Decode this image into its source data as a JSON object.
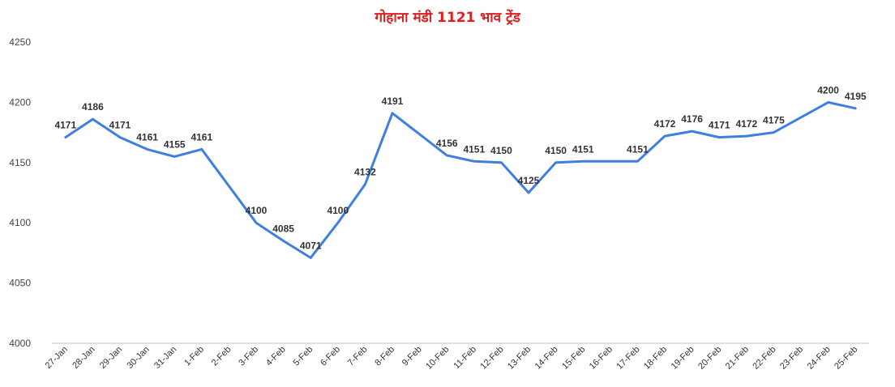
{
  "chart_data": {
    "type": "line",
    "title": "गोहाना मंडी 1121 भाव ट्रेंड",
    "xlabel": "",
    "ylabel": "",
    "ylim": [
      4000,
      4250
    ],
    "yticks": [
      4000,
      4050,
      4100,
      4150,
      4200,
      4250
    ],
    "grid": false,
    "legend": "none",
    "line_color": "#3e7fe0",
    "title_color": "#e11d1d",
    "categories": [
      "27-Jan",
      "28-Jan",
      "29-Jan",
      "30-Jan",
      "31-Jan",
      "1-Feb",
      "2-Feb",
      "3-Feb",
      "4-Feb",
      "5-Feb",
      "6-Feb",
      "7-Feb",
      "8-Feb",
      "9-Feb",
      "10-Feb",
      "11-Feb",
      "12-Feb",
      "13-Feb",
      "14-Feb",
      "15-Feb",
      "16-Feb",
      "17-Feb",
      "18-Feb",
      "19-Feb",
      "20-Feb",
      "21-Feb",
      "22-Feb",
      "23-Feb",
      "24-Feb",
      "25-Feb"
    ],
    "series": [
      {
        "values": [
          4171,
          4186,
          4171,
          4161,
          4155,
          4161,
          null,
          4100,
          4085,
          4071,
          4100,
          4132,
          4191,
          null,
          4156,
          4151,
          4150,
          4125,
          4150,
          4151,
          null,
          4151,
          4172,
          4176,
          4171,
          4172,
          4175,
          null,
          4200,
          4195
        ],
        "connect_gaps": true
      }
    ]
  }
}
